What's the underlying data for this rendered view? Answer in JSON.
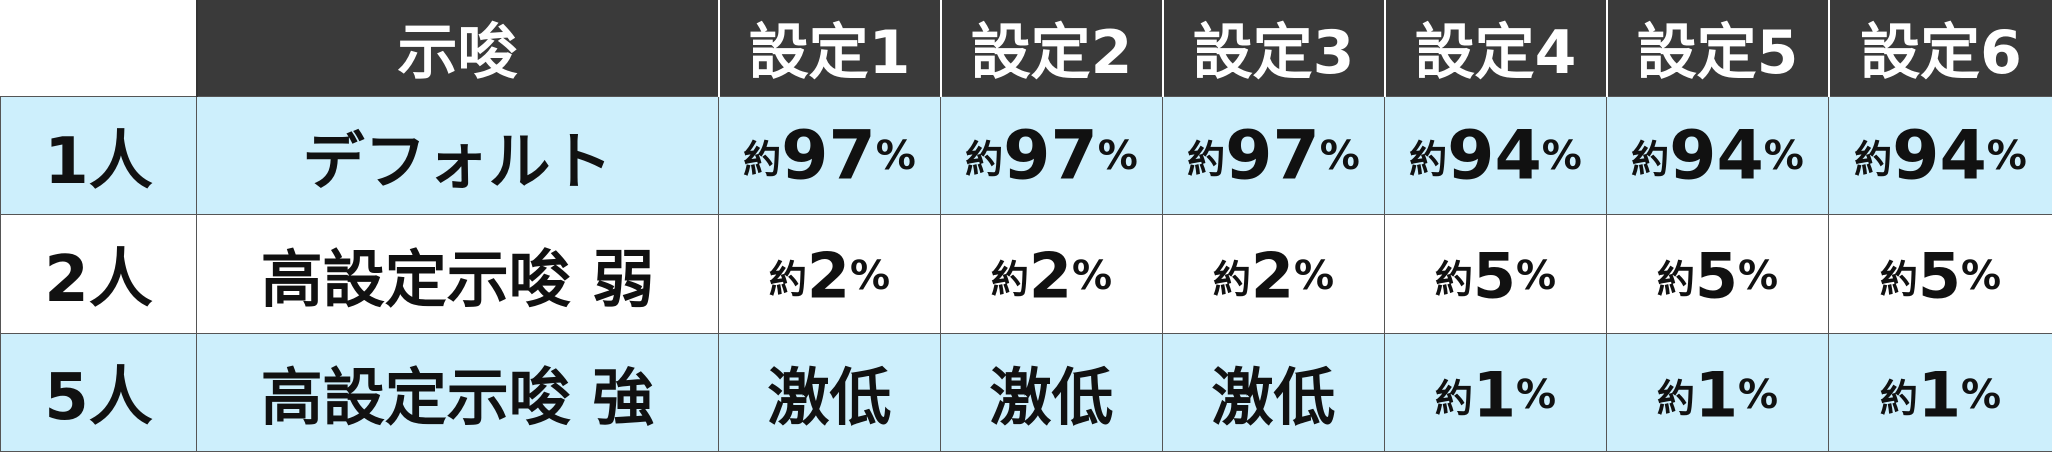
{
  "colors": {
    "header_bg": "#3a3a3a",
    "highlight_row_bg": "#cdeffc",
    "plain_row_bg": "#ffffff",
    "text": "#111111",
    "header_text": "#ffffff"
  },
  "table": {
    "corner": "",
    "hint_header": "示唆",
    "settings": [
      "設定1",
      "設定2",
      "設定3",
      "設定4",
      "設定5",
      "設定6"
    ],
    "rows": [
      {
        "label": "1人",
        "hint": "デフォルト",
        "highlight": true,
        "values": [
          {
            "prefix": "約",
            "num": "97",
            "suffix": "%"
          },
          {
            "prefix": "約",
            "num": "97",
            "suffix": "%"
          },
          {
            "prefix": "約",
            "num": "97",
            "suffix": "%"
          },
          {
            "prefix": "約",
            "num": "94",
            "suffix": "%"
          },
          {
            "prefix": "約",
            "num": "94",
            "suffix": "%"
          },
          {
            "prefix": "約",
            "num": "94",
            "suffix": "%"
          }
        ]
      },
      {
        "label": "2人",
        "hint": "高設定示唆 弱",
        "highlight": false,
        "values": [
          {
            "prefix": "約",
            "num": "2",
            "suffix": "%"
          },
          {
            "prefix": "約",
            "num": "2",
            "suffix": "%"
          },
          {
            "prefix": "約",
            "num": "2",
            "suffix": "%"
          },
          {
            "prefix": "約",
            "num": "5",
            "suffix": "%"
          },
          {
            "prefix": "約",
            "num": "5",
            "suffix": "%"
          },
          {
            "prefix": "約",
            "num": "5",
            "suffix": "%"
          }
        ]
      },
      {
        "label": "5人",
        "hint": "高設定示唆 強",
        "highlight": true,
        "values": [
          {
            "prefix": "",
            "num": "激低",
            "suffix": ""
          },
          {
            "prefix": "",
            "num": "激低",
            "suffix": ""
          },
          {
            "prefix": "",
            "num": "激低",
            "suffix": ""
          },
          {
            "prefix": "約",
            "num": "1",
            "suffix": "%"
          },
          {
            "prefix": "約",
            "num": "1",
            "suffix": "%"
          },
          {
            "prefix": "約",
            "num": "1",
            "suffix": "%"
          }
        ]
      }
    ]
  }
}
